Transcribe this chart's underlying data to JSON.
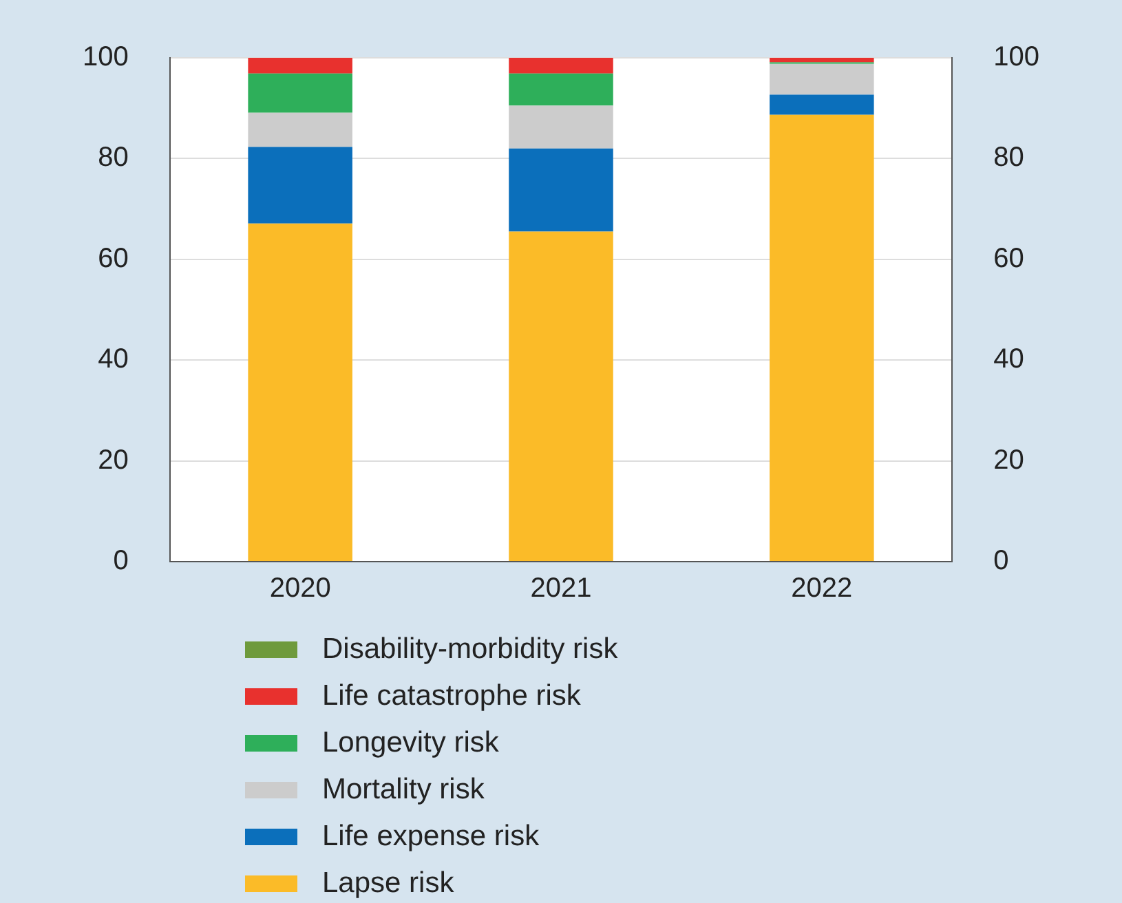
{
  "chart_data": {
    "type": "bar",
    "stacked": true,
    "categories": [
      "2020",
      "2021",
      "2022"
    ],
    "series": [
      {
        "name": "Lapse risk",
        "color": "#fbbb28",
        "values": [
          67.1,
          65.5,
          88.7
        ]
      },
      {
        "name": "Life expense risk",
        "color": "#0b6fbb",
        "values": [
          15.2,
          16.5,
          4.0
        ]
      },
      {
        "name": "Mortality risk",
        "color": "#cccccc",
        "values": [
          6.8,
          8.5,
          6.1
        ]
      },
      {
        "name": "Longevity risk",
        "color": "#2eaf5a",
        "values": [
          7.8,
          6.4,
          0.3
        ]
      },
      {
        "name": "Life catastrophe risk",
        "color": "#e8312e",
        "values": [
          3.1,
          3.1,
          0.9
        ]
      },
      {
        "name": "Disability-morbidity risk",
        "color": "#6e9a3c",
        "values": [
          0,
          0,
          0
        ]
      }
    ],
    "ylim": [
      0,
      100
    ],
    "yticks": [
      0,
      20,
      40,
      60,
      80,
      100
    ],
    "y2lim": [
      0,
      100
    ],
    "y2ticks": [
      0,
      20,
      40,
      60,
      80,
      100
    ],
    "grid": "y",
    "legend": "bottom"
  }
}
